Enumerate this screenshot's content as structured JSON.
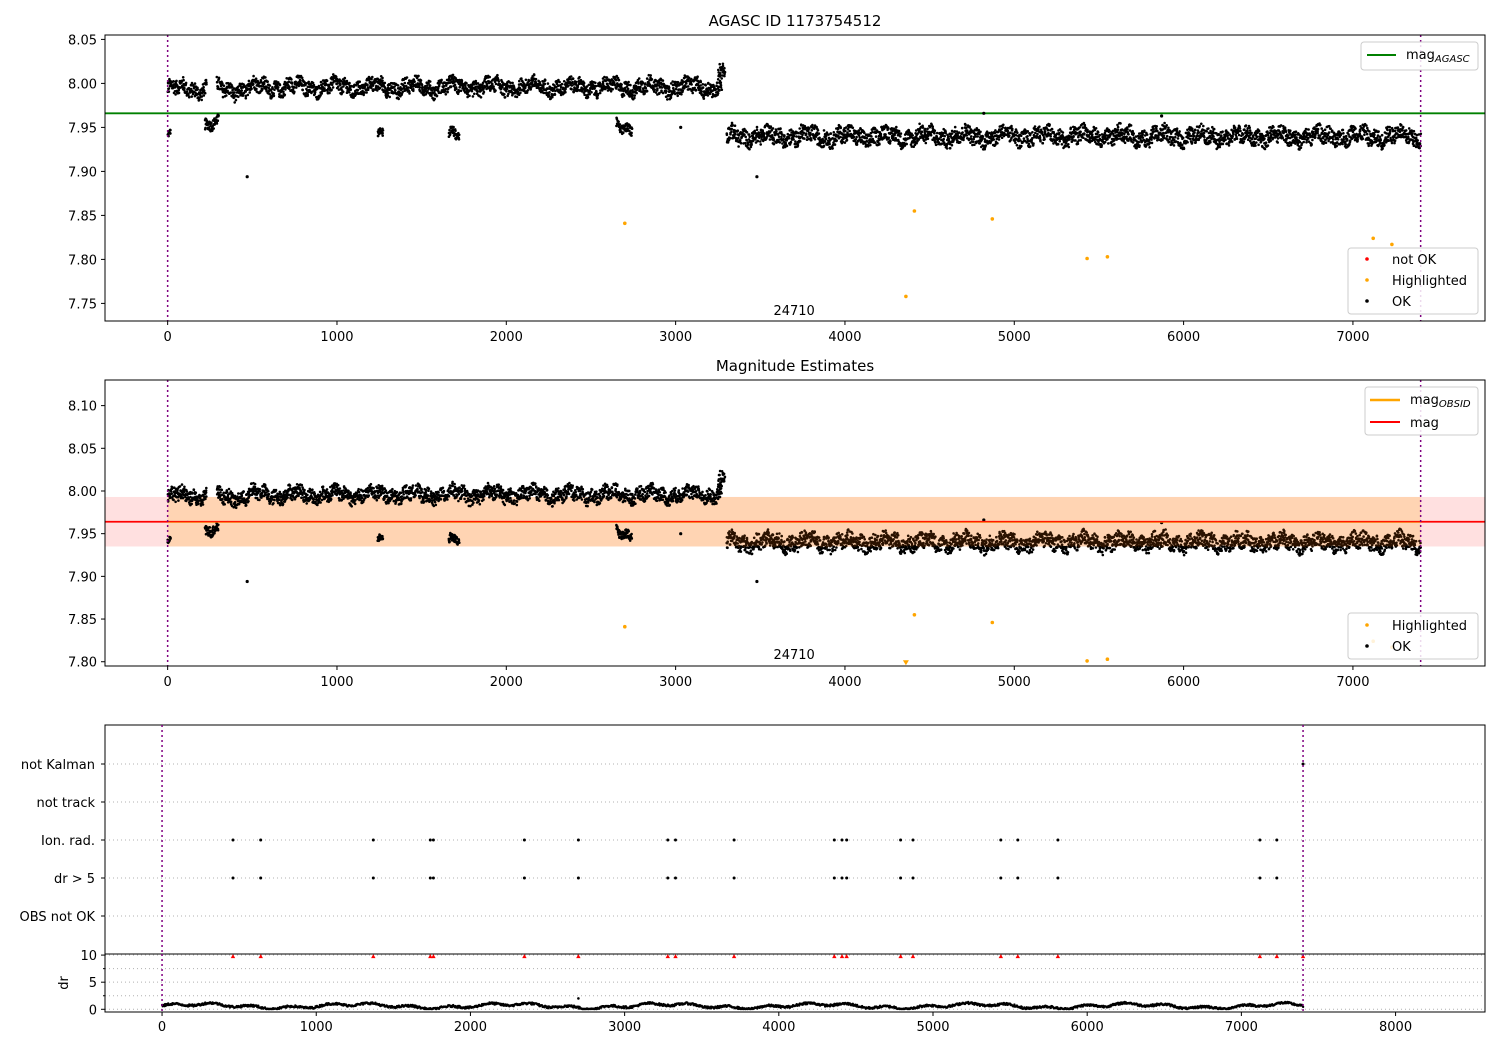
{
  "figure": {
    "title_top": "AGASC ID 1173754512",
    "title_mid": "Magnitude Estimates",
    "obsid_label": "24710"
  },
  "colors": {
    "ok": "#000000",
    "highlighted": "#ffa500",
    "not_ok": "#ff0000",
    "mag_agasc": "#008000",
    "mag_obsid": "#ffa500",
    "mag": "#ff0000",
    "band": "#ff9999",
    "obsid_boundary": "#800080",
    "grid": "#b0b0b0"
  },
  "chart_data": [
    {
      "id": "top",
      "type": "scatter",
      "title": "AGASC ID 1173754512",
      "xlim": [
        -370,
        7780
      ],
      "ylim": [
        7.73,
        8.055
      ],
      "xticks": [
        0,
        1000,
        2000,
        3000,
        4000,
        5000,
        6000,
        7000,
        8000
      ],
      "yticks": [
        7.75,
        7.8,
        7.85,
        7.9,
        7.95,
        8.0,
        8.05
      ],
      "ytick_labels": [
        "7.75",
        "7.80",
        "7.85",
        "7.90",
        "7.95",
        "8.00",
        "8.05"
      ],
      "hlines": [
        {
          "name": "mag_AGASC",
          "y": 7.966,
          "x": [
            -370,
            7780
          ]
        }
      ],
      "vlines": [
        0,
        7400
      ],
      "annotation": {
        "text": "24710",
        "x": 3700,
        "y": 7.74
      },
      "legend_lines": [
        {
          "label": "mag",
          "sub": "AGASC",
          "color_key": "mag_agasc"
        }
      ],
      "legend_points": [
        {
          "label": "not OK",
          "color_key": "not_ok"
        },
        {
          "label": "Highlighted",
          "color_key": "highlighted"
        },
        {
          "label": "OK",
          "color_key": "ok"
        }
      ],
      "highlighted": [
        [
          2700,
          7.841
        ],
        [
          4360,
          7.758
        ],
        [
          4410,
          7.855
        ],
        [
          4870,
          7.846
        ],
        [
          5430,
          7.801
        ],
        [
          5550,
          7.803
        ],
        [
          7120,
          7.824
        ],
        [
          7230,
          7.817
        ]
      ],
      "ok_outliers": [
        [
          470,
          7.894
        ],
        [
          3480,
          7.894
        ],
        [
          3030,
          7.95
        ],
        [
          4820,
          7.966
        ],
        [
          5870,
          7.963
        ]
      ],
      "segments": [
        {
          "x": [
            0,
            15
          ],
          "y": 7.941,
          "spread": 0.003
        },
        {
          "x": [
            0,
            230
          ],
          "y": 7.994,
          "spread": 0.008
        },
        {
          "x": [
            220,
            300
          ],
          "y": 7.952,
          "spread": 0.006
        },
        {
          "x": [
            290,
            480
          ],
          "y": 7.993,
          "spread": 0.008
        },
        {
          "x": [
            480,
            3270
          ],
          "y": 7.996,
          "spread": 0.008
        },
        {
          "x": [
            1240,
            1270
          ],
          "y": 7.941,
          "spread": 0.004
        },
        {
          "x": [
            1660,
            1720
          ],
          "y": 7.94,
          "spread": 0.005
        },
        {
          "x": [
            2650,
            2740
          ],
          "y": 7.951,
          "spread": 0.005
        },
        {
          "x": [
            3250,
            3290
          ],
          "y": 8.012,
          "spread": 0.008
        },
        {
          "x": [
            3300,
            7400
          ],
          "y": 7.94,
          "spread": 0.009
        }
      ]
    },
    {
      "id": "middle",
      "type": "scatter",
      "title": "Magnitude Estimates",
      "xlim": [
        -370,
        7780
      ],
      "ylim": [
        7.795,
        8.13
      ],
      "xticks": [
        0,
        1000,
        2000,
        3000,
        4000,
        5000,
        6000,
        7000,
        8000
      ],
      "yticks": [
        7.8,
        7.85,
        7.9,
        7.95,
        8.0,
        8.05,
        8.1
      ],
      "ytick_labels": [
        "7.80",
        "7.85",
        "7.90",
        "7.95",
        "8.00",
        "8.05",
        "8.10"
      ],
      "hlines": [
        {
          "name": "mag",
          "y": 7.964,
          "x": [
            -370,
            7780
          ]
        }
      ],
      "bands": [
        {
          "y": [
            7.935,
            7.993
          ],
          "x": [
            -370,
            7780
          ],
          "color_key": "band",
          "opacity": 0.3
        },
        {
          "y": [
            7.935,
            7.993
          ],
          "x": [
            0,
            7400
          ],
          "color_key": "mag_obsid",
          "opacity": 0.2
        }
      ],
      "obsid_mag": {
        "y": 7.964,
        "x": [
          0,
          7400
        ]
      },
      "vlines": [
        0,
        7400
      ],
      "annotation": {
        "text": "24710",
        "x": 3700,
        "y": 7.807
      },
      "legend_lines": [
        {
          "label": "mag",
          "sub": "OBSID",
          "color_key": "mag_obsid"
        },
        {
          "label": "mag",
          "sub": "",
          "color_key": "mag"
        }
      ],
      "legend_points": [
        {
          "label": "Highlighted",
          "color_key": "highlighted"
        },
        {
          "label": "OK",
          "color_key": "ok"
        }
      ],
      "highlighted": [
        [
          2700,
          7.841
        ],
        [
          4410,
          7.855
        ],
        [
          4870,
          7.846
        ],
        [
          5430,
          7.801
        ],
        [
          5550,
          7.803
        ],
        [
          7120,
          7.824
        ],
        [
          7230,
          7.817
        ]
      ],
      "down_markers": [
        [
          4360,
          7.797
        ]
      ],
      "ok_outliers": [
        [
          470,
          7.894
        ],
        [
          3480,
          7.894
        ],
        [
          3030,
          7.95
        ],
        [
          4820,
          7.966
        ],
        [
          5870,
          7.963
        ]
      ],
      "segments": [
        {
          "x": [
            0,
            15
          ],
          "y": 7.941,
          "spread": 0.003
        },
        {
          "x": [
            0,
            230
          ],
          "y": 7.994,
          "spread": 0.008
        },
        {
          "x": [
            220,
            300
          ],
          "y": 7.952,
          "spread": 0.006
        },
        {
          "x": [
            290,
            480
          ],
          "y": 7.993,
          "spread": 0.008
        },
        {
          "x": [
            480,
            3270
          ],
          "y": 7.996,
          "spread": 0.008
        },
        {
          "x": [
            1240,
            1270
          ],
          "y": 7.941,
          "spread": 0.004
        },
        {
          "x": [
            1660,
            1720
          ],
          "y": 7.94,
          "spread": 0.005
        },
        {
          "x": [
            2650,
            2740
          ],
          "y": 7.951,
          "spread": 0.005
        },
        {
          "x": [
            3250,
            3290
          ],
          "y": 8.012,
          "spread": 0.008
        },
        {
          "x": [
            3300,
            7400
          ],
          "y": 7.94,
          "spread": 0.009
        }
      ]
    },
    {
      "id": "flags",
      "type": "scatter",
      "xlim": [
        -370,
        8580
      ],
      "categories": [
        "not Kalman",
        "not track",
        "Ion. rad.",
        "dr > 5",
        "OBS not OK"
      ],
      "vlines": [
        0,
        7400
      ],
      "flag_points": {
        "not Kalman": [
          7400
        ],
        "not track": [],
        "Ion. rad.": [
          460,
          640,
          1370,
          1740,
          1760,
          2350,
          2700,
          3280,
          3330,
          3710,
          4360,
          4410,
          4440,
          4790,
          4870,
          5440,
          5550,
          5810,
          7120,
          7230
        ],
        "dr > 5": [
          460,
          640,
          1370,
          1740,
          1760,
          2350,
          2700,
          3280,
          3330,
          3710,
          4360,
          4410,
          4440,
          4790,
          4870,
          5440,
          5550,
          5810,
          7120,
          7230
        ],
        "OBS not OK": []
      }
    },
    {
      "id": "dr",
      "type": "scatter",
      "ylabel": "dr",
      "xlim": [
        -370,
        8580
      ],
      "ylim": [
        -0.5,
        10.2
      ],
      "xticks": [
        0,
        1000,
        2000,
        3000,
        4000,
        5000,
        6000,
        7000,
        8000
      ],
      "yticks": [
        0,
        5,
        10
      ],
      "capped_points": [
        460,
        640,
        1370,
        1740,
        1760,
        2350,
        2700,
        3280,
        3330,
        3710,
        4360,
        4410,
        4440,
        4790,
        4870,
        5440,
        5550,
        5810,
        7120,
        7230,
        7400
      ],
      "spike": [
        2700,
        2.0
      ],
      "baseline": {
        "x": [
          0,
          7400
        ],
        "y": 0.6
      }
    }
  ]
}
